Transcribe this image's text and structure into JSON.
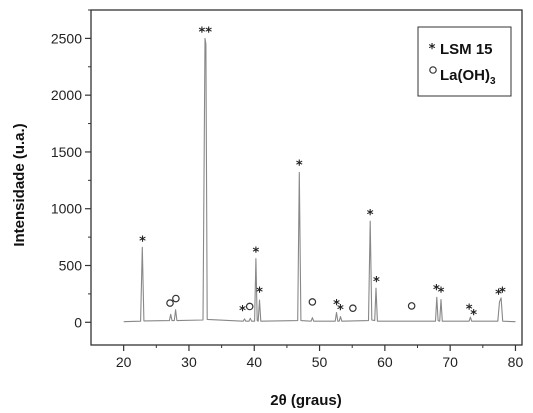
{
  "chart_data": {
    "type": "line",
    "xlabel": "2θ (graus)",
    "ylabel": "Intensidade (u.a.)",
    "xlim": [
      15,
      81
    ],
    "ylim": [
      -200,
      2750
    ],
    "x_ticks": [
      20,
      30,
      40,
      50,
      60,
      70,
      80
    ],
    "y_ticks": [
      0,
      500,
      1000,
      1500,
      2000,
      2500
    ],
    "grid": false,
    "legend_position": "top-right",
    "line_color": "#888888",
    "series": [
      {
        "values": [
          {
            "x": 20,
            "y": 5
          },
          {
            "x": 22.6,
            "y": 10
          },
          {
            "x": 22.85,
            "y": 660
          },
          {
            "x": 23.1,
            "y": 12
          },
          {
            "x": 27.0,
            "y": 15
          },
          {
            "x": 27.2,
            "y": 70
          },
          {
            "x": 27.4,
            "y": 15
          },
          {
            "x": 27.75,
            "y": 15
          },
          {
            "x": 27.95,
            "y": 110
          },
          {
            "x": 28.15,
            "y": 15
          },
          {
            "x": 32.15,
            "y": 20
          },
          {
            "x": 32.45,
            "y": 2500
          },
          {
            "x": 32.6,
            "y": 2450
          },
          {
            "x": 32.8,
            "y": 25
          },
          {
            "x": 38.3,
            "y": 10
          },
          {
            "x": 38.5,
            "y": 30
          },
          {
            "x": 38.7,
            "y": 10
          },
          {
            "x": 39.2,
            "y": 10
          },
          {
            "x": 39.4,
            "y": 35
          },
          {
            "x": 39.6,
            "y": 10
          },
          {
            "x": 40.05,
            "y": 10
          },
          {
            "x": 40.25,
            "y": 560
          },
          {
            "x": 40.45,
            "y": 15
          },
          {
            "x": 40.6,
            "y": 10
          },
          {
            "x": 40.8,
            "y": 195
          },
          {
            "x": 41.0,
            "y": 10
          },
          {
            "x": 46.65,
            "y": 15
          },
          {
            "x": 46.9,
            "y": 1320
          },
          {
            "x": 47.15,
            "y": 15
          },
          {
            "x": 48.7,
            "y": 10
          },
          {
            "x": 48.9,
            "y": 40
          },
          {
            "x": 49.1,
            "y": 10
          },
          {
            "x": 52.4,
            "y": 10
          },
          {
            "x": 52.6,
            "y": 85
          },
          {
            "x": 52.8,
            "y": 10
          },
          {
            "x": 53.0,
            "y": 10
          },
          {
            "x": 53.2,
            "y": 50
          },
          {
            "x": 53.4,
            "y": 10
          },
          {
            "x": 57.5,
            "y": 15
          },
          {
            "x": 57.75,
            "y": 890
          },
          {
            "x": 58.0,
            "y": 20
          },
          {
            "x": 58.45,
            "y": 15
          },
          {
            "x": 58.65,
            "y": 300
          },
          {
            "x": 58.85,
            "y": 10
          },
          {
            "x": 64.0,
            "y": 10
          },
          {
            "x": 67.75,
            "y": 10
          },
          {
            "x": 67.95,
            "y": 220
          },
          {
            "x": 68.15,
            "y": 15
          },
          {
            "x": 68.4,
            "y": 10
          },
          {
            "x": 68.6,
            "y": 200
          },
          {
            "x": 68.8,
            "y": 10
          },
          {
            "x": 72.9,
            "y": 10
          },
          {
            "x": 73.1,
            "y": 45
          },
          {
            "x": 73.3,
            "y": 10
          },
          {
            "x": 77.3,
            "y": 10
          },
          {
            "x": 77.55,
            "y": 180
          },
          {
            "x": 77.8,
            "y": 215
          },
          {
            "x": 78.05,
            "y": 10
          },
          {
            "x": 80,
            "y": 5
          }
        ]
      }
    ],
    "legend": [
      {
        "symbol": "*",
        "label": "LSM 15"
      },
      {
        "symbol": "o",
        "label": "La(OH)",
        "subscript": "3"
      }
    ],
    "annotations": [
      {
        "symbol": "*",
        "x": 22.9,
        "y": 660
      },
      {
        "symbol": "o",
        "x": 27.1,
        "y": 90
      },
      {
        "symbol": "o",
        "x": 28.0,
        "y": 130
      },
      {
        "symbol": "**",
        "x": 32.5,
        "y": 2500
      },
      {
        "symbol": "*",
        "x": 38.2,
        "y": 45
      },
      {
        "symbol": "o",
        "x": 39.3,
        "y": 60
      },
      {
        "symbol": "*",
        "x": 40.25,
        "y": 560
      },
      {
        "symbol": "*",
        "x": 40.8,
        "y": 210
      },
      {
        "symbol": "*",
        "x": 46.9,
        "y": 1330
      },
      {
        "symbol": "o",
        "x": 48.9,
        "y": 100
      },
      {
        "symbol": "*",
        "x": 52.6,
        "y": 100
      },
      {
        "symbol": "*",
        "x": 53.2,
        "y": 55
      },
      {
        "symbol": "o",
        "x": 55.1,
        "y": 45
      },
      {
        "symbol": "*",
        "x": 57.75,
        "y": 890
      },
      {
        "symbol": "*",
        "x": 58.7,
        "y": 300
      },
      {
        "symbol": "o",
        "x": 64.1,
        "y": 65
      },
      {
        "symbol": "*",
        "x": 67.9,
        "y": 230
      },
      {
        "symbol": "*",
        "x": 68.6,
        "y": 210
      },
      {
        "symbol": "*",
        "x": 72.9,
        "y": 60
      },
      {
        "symbol": "*",
        "x": 73.6,
        "y": 10
      },
      {
        "symbol": "*",
        "x": 77.4,
        "y": 190
      },
      {
        "symbol": "*",
        "x": 78.0,
        "y": 210
      }
    ]
  }
}
